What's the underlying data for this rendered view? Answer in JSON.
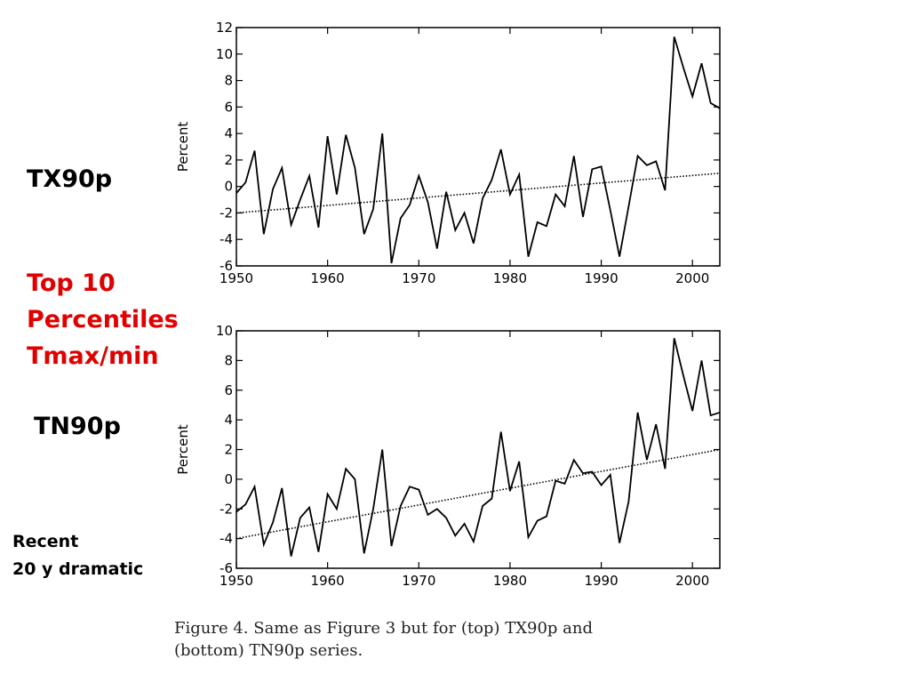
{
  "labels": {
    "tx": "TX90p",
    "top_lines": [
      "Top 10",
      "Percentiles",
      "Tmax/min"
    ],
    "tn": "TN90p",
    "recent_lines": [
      "Recent",
      "20 y dramatic"
    ]
  },
  "caption": {
    "line1": "Figure 4.  Same as Figure 3 but for (top) TX90p and",
    "line2": "(bottom) TN90p series."
  },
  "colors": {
    "annotation_red": "#e00000"
  },
  "chart_data": [
    {
      "type": "line",
      "ylabel": "Percent",
      "xlim": [
        1950,
        2003
      ],
      "ylim": [
        -6,
        12
      ],
      "xticks": [
        1950,
        1960,
        1970,
        1980,
        1990,
        2000
      ],
      "yticks": [
        -6,
        -4,
        -2,
        0,
        2,
        4,
        6,
        8,
        10,
        12
      ],
      "grid": false,
      "x": [
        1950,
        1951,
        1952,
        1953,
        1954,
        1955,
        1956,
        1957,
        1958,
        1959,
        1960,
        1961,
        1962,
        1963,
        1964,
        1965,
        1966,
        1967,
        1968,
        1969,
        1970,
        1971,
        1972,
        1973,
        1974,
        1975,
        1976,
        1977,
        1978,
        1979,
        1980,
        1981,
        1982,
        1983,
        1984,
        1985,
        1986,
        1987,
        1988,
        1989,
        1990,
        1991,
        1992,
        1993,
        1994,
        1995,
        1996,
        1997,
        1998,
        1999,
        2000,
        2001,
        2002,
        2003
      ],
      "series": [
        {
          "values": [
            -0.5,
            0.3,
            2.7,
            -3.6,
            -0.2,
            1.4,
            -2.9,
            -1.0,
            0.8,
            -3.1,
            3.8,
            -0.6,
            3.9,
            1.4,
            -3.6,
            -1.7,
            4.0,
            -5.8,
            -2.4,
            -1.4,
            0.8,
            -1.2,
            -4.7,
            -0.4,
            -3.3,
            -2.0,
            -4.3,
            -0.9,
            0.5,
            2.8,
            -0.6,
            0.9,
            -5.3,
            -2.7,
            -3.0,
            -0.6,
            -1.5,
            2.3,
            -2.3,
            1.3,
            1.5,
            -1.8,
            -5.3,
            -1.5,
            2.3,
            1.6,
            1.9,
            -0.3,
            11.3,
            9.0,
            6.8,
            9.3,
            6.3,
            5.9
          ]
        },
        {
          "values": [
            -2.0,
            1.0
          ],
          "x": [
            1950,
            2003
          ],
          "style": "dotted"
        }
      ]
    },
    {
      "type": "line",
      "ylabel": "Percent",
      "xlim": [
        1950,
        2003
      ],
      "ylim": [
        -6,
        10
      ],
      "xticks": [
        1950,
        1960,
        1970,
        1980,
        1990,
        2000
      ],
      "yticks": [
        -6,
        -4,
        -2,
        0,
        2,
        4,
        6,
        8,
        10
      ],
      "grid": false,
      "x": [
        1950,
        1951,
        1952,
        1953,
        1954,
        1955,
        1956,
        1957,
        1958,
        1959,
        1960,
        1961,
        1962,
        1963,
        1964,
        1965,
        1966,
        1967,
        1968,
        1969,
        1970,
        1971,
        1972,
        1973,
        1974,
        1975,
        1976,
        1977,
        1978,
        1979,
        1980,
        1981,
        1982,
        1983,
        1984,
        1985,
        1986,
        1987,
        1988,
        1989,
        1990,
        1991,
        1992,
        1993,
        1994,
        1995,
        1996,
        1997,
        1998,
        1999,
        2000,
        2001,
        2002,
        2003
      ],
      "series": [
        {
          "values": [
            -2.2,
            -1.7,
            -0.5,
            -4.4,
            -2.9,
            -0.6,
            -5.2,
            -2.6,
            -1.9,
            -4.9,
            -1.0,
            -2.0,
            0.7,
            0.0,
            -5.0,
            -2.0,
            2.0,
            -4.5,
            -1.8,
            -0.5,
            -0.7,
            -2.4,
            -2.0,
            -2.6,
            -3.8,
            -3.0,
            -4.2,
            -1.8,
            -1.3,
            3.2,
            -0.8,
            1.2,
            -3.9,
            -2.8,
            -2.5,
            -0.1,
            -0.3,
            1.3,
            0.4,
            0.5,
            -0.4,
            0.3,
            -4.3,
            -1.5,
            4.5,
            1.3,
            3.7,
            0.7,
            9.5,
            7.0,
            4.6,
            8.0,
            4.3,
            4.5
          ]
        },
        {
          "values": [
            -4.0,
            2.0
          ],
          "x": [
            1950,
            2003
          ],
          "style": "dotted"
        }
      ]
    }
  ]
}
